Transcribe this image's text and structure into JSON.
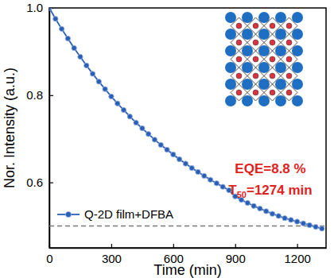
{
  "chart_data": {
    "type": "line",
    "x_label": "Time (min)",
    "y_label": "Nor. Intensity (a.u.)",
    "xlim": [
      0,
      1340
    ],
    "xticks": [
      0,
      300,
      600,
      900,
      1200
    ],
    "ylim": [
      0.45,
      1.0
    ],
    "yticks": [
      0.6,
      0.8,
      {
        "value": 1.0,
        "label": "1.0"
      }
    ],
    "x": [
      0,
      30,
      60,
      90,
      120,
      150,
      180,
      210,
      240,
      270,
      300,
      330,
      360,
      390,
      420,
      450,
      480,
      510,
      540,
      570,
      600,
      630,
      660,
      690,
      720,
      750,
      780,
      810,
      840,
      870,
      900,
      930,
      960,
      990,
      1020,
      1050,
      1080,
      1110,
      1140,
      1170,
      1200,
      1230,
      1260,
      1290,
      1320
    ],
    "series": [
      {
        "name": "Q-2D film+DFBA",
        "color": "#2a5fb8",
        "marker": "circle",
        "line_style": "solid",
        "values": [
          1.0,
          0.975,
          0.952,
          0.93,
          0.908,
          0.888,
          0.868,
          0.849,
          0.831,
          0.814,
          0.797,
          0.781,
          0.766,
          0.751,
          0.737,
          0.724,
          0.711,
          0.698,
          0.686,
          0.675,
          0.664,
          0.653,
          0.643,
          0.633,
          0.624,
          0.615,
          0.606,
          0.598,
          0.59,
          0.582,
          0.568,
          0.56,
          0.553,
          0.546,
          0.54,
          0.534,
          0.528,
          0.523,
          0.518,
          0.514,
          0.51,
          0.506,
          0.502,
          0.498,
          0.494
        ]
      }
    ],
    "hline": 0.5,
    "annotations": [
      [
        "EQE=8.8 %"
      ],
      [
        "T",
        "50",
        "=1274 min"
      ]
    ],
    "legend": "lower left",
    "grid": false
  }
}
